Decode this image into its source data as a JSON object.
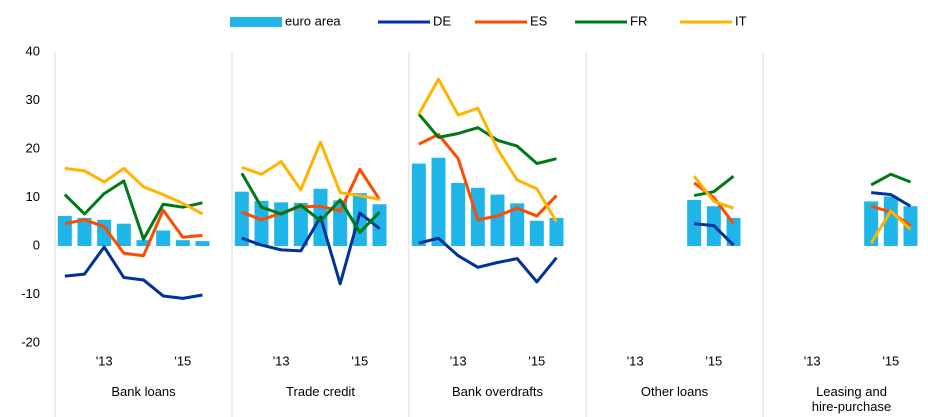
{
  "chart_data": {
    "type": "bar-line",
    "ylim": [
      -20,
      40
    ],
    "yticks": [
      -20,
      -10,
      0,
      10,
      20,
      30,
      40
    ],
    "categories": [
      null,
      null,
      "'13",
      null,
      null,
      null,
      "'15",
      null,
      null
    ],
    "panels": [
      "Bank loans",
      "Trade credit",
      "Bank overdrafts",
      "Other loans",
      "Leasing and\nhire-purchase"
    ],
    "series": [
      {
        "name": "euro area",
        "type": "bar",
        "color": "#1fb5e8",
        "values": [
          [
            6.2,
            5.8,
            5.4,
            4.6,
            1.2,
            3.2,
            1.2,
            1.0,
            null
          ],
          [
            11.2,
            9.3,
            9.0,
            8.9,
            11.8,
            9.4,
            10.9,
            8.6,
            null
          ],
          [
            17.0,
            18.2,
            13.0,
            12.0,
            10.6,
            8.8,
            5.2,
            5.8,
            null
          ],
          [
            null,
            null,
            null,
            null,
            null,
            9.5,
            8.2,
            5.8,
            null
          ],
          [
            null,
            null,
            null,
            null,
            null,
            9.2,
            10.2,
            8.2,
            null
          ]
        ]
      },
      {
        "name": "DE",
        "type": "line",
        "color": "#003299",
        "values": [
          [
            -6.2,
            -5.8,
            -0.2,
            -6.5,
            -7.0,
            -10.3,
            -10.8,
            -10.1,
            null
          ],
          [
            1.6,
            0.2,
            -0.8,
            -1.0,
            6.0,
            -7.8,
            6.8,
            3.6,
            null
          ],
          [
            0.6,
            1.6,
            -2.0,
            -4.4,
            -3.4,
            -2.6,
            -7.4,
            -2.4,
            null
          ],
          [
            null,
            null,
            null,
            null,
            null,
            4.6,
            4.2,
            0.2,
            null
          ],
          [
            null,
            null,
            null,
            null,
            null,
            11.0,
            10.6,
            8.2,
            null
          ]
        ]
      },
      {
        "name": "ES",
        "type": "line",
        "color": "#ff4b00",
        "values": [
          [
            4.6,
            5.4,
            4.0,
            -1.5,
            -2.0,
            7.4,
            1.8,
            2.2,
            null
          ],
          [
            7.0,
            5.4,
            6.8,
            8.1,
            8.2,
            7.2,
            15.8,
            9.6,
            null
          ],
          [
            21.0,
            23.0,
            18.0,
            5.4,
            6.2,
            7.8,
            6.2,
            10.4,
            null
          ],
          [
            null,
            null,
            null,
            null,
            null,
            13.0,
            10.0,
            4.6,
            null
          ],
          [
            null,
            null,
            null,
            null,
            null,
            8.2,
            7.0,
            4.2,
            null
          ]
        ]
      },
      {
        "name": "FR",
        "type": "line",
        "color": "#007816",
        "values": [
          [
            10.6,
            6.6,
            10.8,
            13.4,
            1.4,
            8.6,
            8.0,
            8.9,
            null
          ],
          [
            15.0,
            8.0,
            6.6,
            8.4,
            5.2,
            9.5,
            2.8,
            7.0,
            null
          ],
          [
            27.2,
            22.4,
            23.2,
            24.4,
            21.8,
            20.6,
            17.0,
            18.0,
            null
          ],
          [
            null,
            null,
            null,
            null,
            null,
            10.4,
            11.2,
            14.4,
            null
          ],
          [
            null,
            null,
            null,
            null,
            null,
            12.6,
            14.8,
            13.2,
            null
          ]
        ]
      },
      {
        "name": "IT",
        "type": "line",
        "color": "#ffb400",
        "values": [
          [
            16.0,
            15.5,
            13.2,
            16.0,
            12.2,
            10.6,
            8.8,
            6.6,
            null
          ],
          [
            16.2,
            14.8,
            17.4,
            11.6,
            21.4,
            11.0,
            10.4,
            9.6,
            null
          ],
          [
            27.2,
            34.4,
            27.0,
            28.4,
            20.0,
            13.6,
            11.8,
            5.0,
            null
          ],
          [
            null,
            null,
            null,
            null,
            null,
            14.4,
            9.2,
            7.8,
            null
          ],
          [
            null,
            null,
            null,
            null,
            null,
            0.6,
            7.2,
            3.4,
            null
          ]
        ]
      }
    ]
  }
}
